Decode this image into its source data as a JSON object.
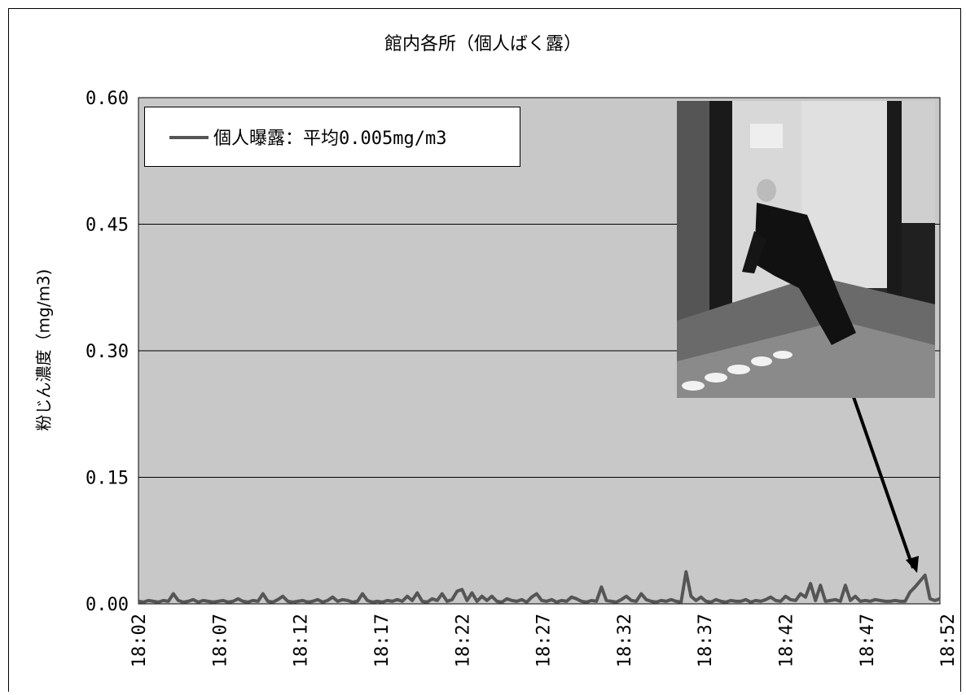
{
  "chart_data": {
    "type": "line",
    "title": "館内各所（個人ばく露）",
    "ylabel": "粉じん濃度（mg/m3)",
    "xlabel": "",
    "ylim": [
      0,
      0.6
    ],
    "yticks": [
      "0.00",
      "0.15",
      "0.30",
      "0.45",
      "0.60"
    ],
    "ytick_values": [
      0,
      0.15,
      0.3,
      0.45,
      0.6
    ],
    "grid": true,
    "legend_position": "top-left",
    "series": [
      {
        "name": "個人曝露：平均0.005mg/m3",
        "values": [
          0.003,
          0.002,
          0.004,
          0.003,
          0.002,
          0.004,
          0.003,
          0.012,
          0.004,
          0.002,
          0.003,
          0.005,
          0.002,
          0.004,
          0.003,
          0.002,
          0.003,
          0.004,
          0.002,
          0.003,
          0.006,
          0.003,
          0.002,
          0.004,
          0.003,
          0.012,
          0.003,
          0.002,
          0.005,
          0.009,
          0.003,
          0.002,
          0.003,
          0.004,
          0.002,
          0.003,
          0.005,
          0.002,
          0.004,
          0.008,
          0.003,
          0.005,
          0.004,
          0.002,
          0.003,
          0.012,
          0.004,
          0.002,
          0.003,
          0.002,
          0.004,
          0.003,
          0.005,
          0.003,
          0.009,
          0.004,
          0.013,
          0.003,
          0.002,
          0.006,
          0.004,
          0.012,
          0.003,
          0.005,
          0.015,
          0.017,
          0.004,
          0.013,
          0.003,
          0.009,
          0.004,
          0.009,
          0.003,
          0.002,
          0.006,
          0.004,
          0.003,
          0.005,
          0.002,
          0.008,
          0.012,
          0.004,
          0.003,
          0.005,
          0.002,
          0.004,
          0.003,
          0.008,
          0.006,
          0.003,
          0.002,
          0.004,
          0.003,
          0.02,
          0.004,
          0.003,
          0.002,
          0.005,
          0.009,
          0.004,
          0.003,
          0.012,
          0.005,
          0.003,
          0.002,
          0.004,
          0.003,
          0.005,
          0.003,
          0.002,
          0.038,
          0.009,
          0.004,
          0.008,
          0.003,
          0.002,
          0.005,
          0.003,
          0.002,
          0.004,
          0.003,
          0.003,
          0.005,
          0.002,
          0.004,
          0.003,
          0.005,
          0.008,
          0.004,
          0.003,
          0.009,
          0.005,
          0.004,
          0.012,
          0.008,
          0.024,
          0.004,
          0.022,
          0.003,
          0.004,
          0.005,
          0.003,
          0.022,
          0.004,
          0.009,
          0.003,
          0.004,
          0.003,
          0.005,
          0.004,
          0.003,
          0.003,
          0.004,
          0.003,
          0.003,
          0.014,
          0.02,
          0.027,
          0.034,
          0.006,
          0.004,
          0.006
        ],
        "color": "#555555"
      }
    ],
    "x_tick_labels": [
      "18:02",
      "18:07",
      "18:12",
      "18:17",
      "18:22",
      "18:27",
      "18:32",
      "18:37",
      "18:42",
      "18:47",
      "18:52"
    ],
    "x_tick_index": [
      0,
      16.25,
      32.5,
      48.75,
      65,
      81.25,
      97.5,
      113.75,
      130,
      146.25,
      162.5
    ],
    "plot_background": "#c8c8c8",
    "annotation": {
      "type": "inset-photo-with-arrow",
      "target_index": 177
    }
  }
}
